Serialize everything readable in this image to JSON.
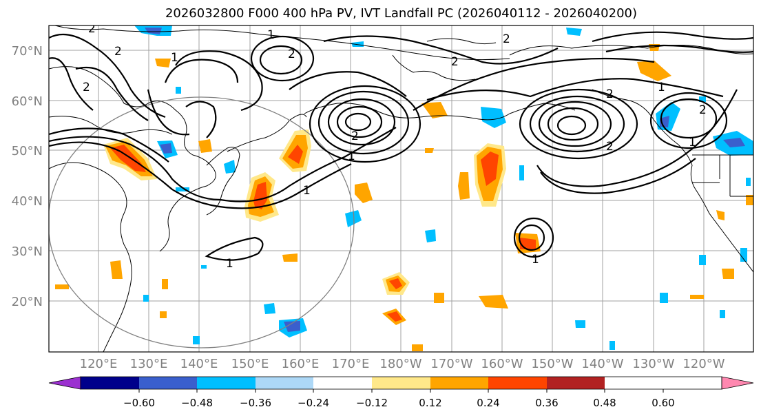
{
  "title": "2026032800 F000 400 hPa PV, IVT Landfall PC (2026040112 - 2026040200)",
  "lat_labels": [
    "70°N",
    "60°N",
    "50°N",
    "40°N",
    "30°N",
    "20°N"
  ],
  "lon_labels": [
    "120°E",
    "130°E",
    "140°E",
    "150°E",
    "160°E",
    "170°E",
    "180°W",
    "170°W",
    "160°W",
    "150°W",
    "140°W",
    "130°W",
    "120°W"
  ],
  "colorbar": {
    "ticks": [
      "−0.60",
      "−0.48",
      "−0.36",
      "−0.24",
      "−0.12",
      "0.12",
      "0.24",
      "0.36",
      "0.48",
      "0.60"
    ],
    "colors": [
      "#9b30d0",
      "#00008b",
      "#3a5fcd",
      "#00bfff",
      "#add8f7",
      "#ffffff",
      "#ffe88a",
      "#ffa500",
      "#ff4500",
      "#b22222",
      "#ff88b0"
    ]
  },
  "contour_labels": [
    "2",
    "1",
    "2",
    "1",
    "2",
    "2",
    "2",
    "2",
    "1",
    "2",
    "1",
    "1",
    "1",
    "2",
    "2",
    "1",
    "2",
    "1"
  ],
  "map": {
    "lon_range": [
      "110°E",
      "115°W"
    ],
    "lat_range": [
      "10°N",
      "75°N"
    ],
    "field": "400 hPa PV",
    "shading": "IVT Landfall PC"
  }
}
